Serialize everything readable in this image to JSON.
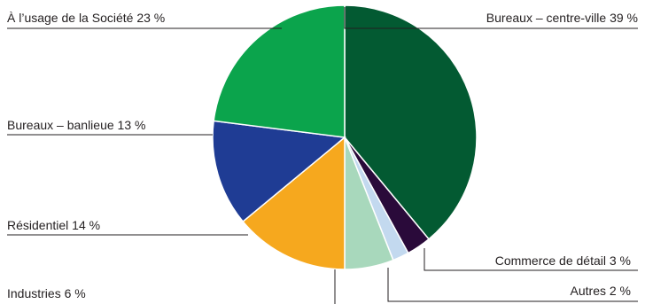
{
  "chart_data": {
    "type": "pie",
    "title": "",
    "slices": [
      {
        "label": "Bureaux – centre-ville 39 %",
        "name": "Bureaux – centre-ville",
        "value": 39,
        "color": "#035a32"
      },
      {
        "label": "Commerce de détail 3 %",
        "name": "Commerce de détail",
        "value": 3,
        "color": "#2a0a3a"
      },
      {
        "label": "Autres 2 %",
        "name": "Autres",
        "value": 2,
        "color": "#c3d9ef"
      },
      {
        "label": "Industries 6 %",
        "name": "Industries",
        "value": 6,
        "color": "#a8d8bc"
      },
      {
        "label": "Résidentiel 14 %",
        "name": "Résidentiel",
        "value": 14,
        "color": "#f6a81e"
      },
      {
        "label": "Bureaux – banlieue 13 %",
        "name": "Bureaux – banlieue",
        "value": 13,
        "color": "#1f3c94"
      },
      {
        "label": "À l’usage de la Société 23 %",
        "name": "À l’usage de la Société",
        "value": 23,
        "color": "#0ba44c"
      }
    ]
  }
}
